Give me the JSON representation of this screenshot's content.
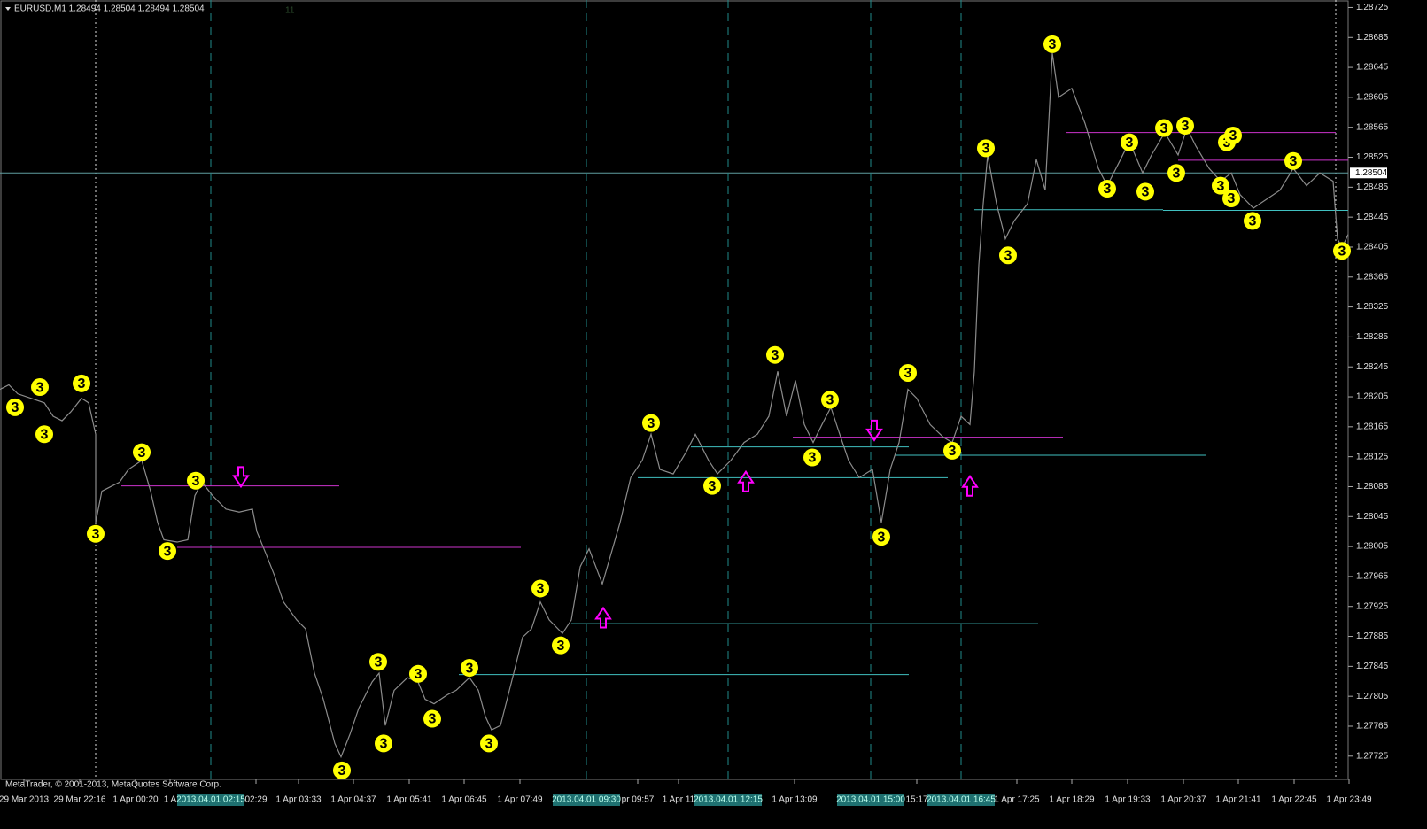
{
  "header": "EURUSD,M1  1.28494 1.28504 1.28494 1.28504",
  "copyright": "MetaTrader, © 2001-2013, MetaQuotes Software Corp.",
  "corner_mark": "11",
  "chart_data": {
    "type": "line",
    "xlim": [
      0,
      1522
    ],
    "ylim": [
      1.27694,
      1.28735
    ],
    "yticks": [
      1.28725,
      1.28685,
      1.28645,
      1.28605,
      1.28565,
      1.28525,
      1.28485,
      1.28445,
      1.28405,
      1.28365,
      1.28325,
      1.28285,
      1.28245,
      1.28205,
      1.28165,
      1.28125,
      1.28085,
      1.28045,
      1.28005,
      1.27965,
      1.27925,
      1.27885,
      1.27845,
      1.27805,
      1.27765,
      1.27725
    ],
    "xticks": [
      {
        "value": 27,
        "label": "29 Mar 2013"
      },
      {
        "value": 90,
        "label": "29 Mar 22:16"
      },
      {
        "value": 153,
        "label": "1 Apr 00:20"
      },
      {
        "value": 192,
        "label": "1 A"
      },
      {
        "value": 289,
        "label": "02:29"
      },
      {
        "value": 337,
        "label": "1 Apr 03:33"
      },
      {
        "value": 399,
        "label": "1 Apr 04:37"
      },
      {
        "value": 462,
        "label": "1 Apr 05:41"
      },
      {
        "value": 524,
        "label": "1 Apr 06:45"
      },
      {
        "value": 587,
        "label": "1 Apr 07:49"
      },
      {
        "value": 720,
        "label": "pr 09:57"
      },
      {
        "value": 766,
        "label": "1 Apr 11"
      },
      {
        "value": 897,
        "label": "1 Apr 13:09"
      },
      {
        "value": 1035,
        "label": "15:17"
      },
      {
        "value": 1148,
        "label": "1 Apr 17:25"
      },
      {
        "value": 1210,
        "label": "1 Apr 18:29"
      },
      {
        "value": 1273,
        "label": "1 Apr 19:33"
      },
      {
        "value": 1336,
        "label": "1 Apr 20:37"
      },
      {
        "value": 1398,
        "label": "1 Apr 21:41"
      },
      {
        "value": 1461,
        "label": "1 Apr 22:45"
      },
      {
        "value": 1523,
        "label": "1 Apr 23:49"
      }
    ],
    "series": [
      {
        "color": "#8c8c8c",
        "x": [
          0,
          10,
          20,
          35,
          50,
          60,
          70,
          80,
          92,
          100,
          108,
          108,
          115,
          125,
          135,
          145,
          160,
          170,
          178,
          185,
          200,
          212,
          220,
          228,
          240,
          255,
          270,
          285,
          290,
          300,
          310,
          320,
          335,
          345,
          355,
          365,
          378,
          385,
          395,
          405,
          420,
          428,
          435,
          445,
          460,
          472,
          480,
          490,
          505,
          515,
          530,
          540,
          548,
          555,
          565,
          580,
          590,
          600,
          610,
          620,
          635,
          645,
          655,
          665,
          680,
          690,
          700,
          712,
          725,
          735,
          745,
          760,
          775,
          785,
          800,
          810,
          825,
          840,
          855,
          868,
          878,
          888,
          898,
          908,
          918,
          928,
          938,
          948,
          958,
          970,
          985,
          995,
          1005,
          1015,
          1025,
          1035,
          1050,
          1065,
          1075,
          1085,
          1095,
          1100,
          1105,
          1110,
          1115,
          1125,
          1135,
          1145,
          1160,
          1170,
          1180,
          1188,
          1195,
          1210,
          1225,
          1240,
          1250,
          1265,
          1275,
          1290,
          1300,
          1315,
          1330,
          1340,
          1350,
          1365,
          1378,
          1390,
          1400,
          1415,
          1430,
          1445,
          1460,
          1475,
          1490,
          1505,
          1510,
          1515,
          1522
        ],
        "values": [
          1.28215,
          1.28221,
          1.28209,
          1.28203,
          1.28197,
          1.28179,
          1.28173,
          1.28185,
          1.28203,
          1.28197,
          1.28155,
          1.28037,
          1.28079,
          1.28085,
          1.28091,
          1.28108,
          1.2812,
          1.28079,
          1.28037,
          1.28014,
          1.28011,
          1.28014,
          1.28073,
          1.28091,
          1.28073,
          1.28055,
          1.28051,
          1.28055,
          1.28025,
          1.27996,
          1.27966,
          1.27931,
          1.27907,
          1.27895,
          1.27836,
          1.27801,
          1.27742,
          1.27724,
          1.27754,
          1.27789,
          1.27824,
          1.27836,
          1.27766,
          1.27813,
          1.2783,
          1.27824,
          1.27801,
          1.27795,
          1.27807,
          1.27813,
          1.2783,
          1.27813,
          1.27778,
          1.2776,
          1.27766,
          1.27836,
          1.27884,
          1.27895,
          1.27931,
          1.27907,
          1.27889,
          1.27907,
          1.27978,
          1.28002,
          1.27955,
          1.27996,
          1.28037,
          1.28097,
          1.2812,
          1.28155,
          1.28108,
          1.28102,
          1.28132,
          1.28155,
          1.2812,
          1.28102,
          1.2812,
          1.28144,
          1.28155,
          1.28179,
          1.28239,
          1.28179,
          1.28227,
          1.28168,
          1.28144,
          1.28168,
          1.28191,
          1.28155,
          1.2812,
          1.28097,
          1.28108,
          1.28037,
          1.28108,
          1.28144,
          1.28215,
          1.28203,
          1.28168,
          1.28151,
          1.28144,
          1.28179,
          1.28168,
          1.28239,
          1.28381,
          1.28463,
          1.28528,
          1.28463,
          1.28416,
          1.2844,
          1.28463,
          1.28522,
          1.28481,
          1.28664,
          1.28605,
          1.28617,
          1.2857,
          1.2851,
          1.28487,
          1.28522,
          1.28546,
          1.28504,
          1.28528,
          1.28558,
          1.28528,
          1.28564,
          1.2854,
          1.2851,
          1.28493,
          1.28504,
          1.28475,
          1.28457,
          1.28469,
          1.28481,
          1.2851,
          1.28487,
          1.28504,
          1.28493,
          1.28416,
          1.28404,
          1.28422
        ]
      }
    ],
    "current_price": 1.28504,
    "current_price_color": "#5f9ea0",
    "markers": {
      "label": "3",
      "color": "#ffff00",
      "x": [
        17,
        45,
        50,
        92,
        108,
        160,
        189,
        221,
        386,
        427,
        433,
        472,
        488,
        530,
        552,
        610,
        633,
        735,
        804,
        875,
        917,
        937,
        995,
        1025,
        1075,
        1113,
        1138,
        1188,
        1250,
        1275,
        1293,
        1314,
        1328,
        1338,
        1378,
        1385,
        1392,
        1390,
        1414,
        1460,
        1515
      ],
      "values": [
        1.28191,
        1.28218,
        1.28155,
        1.28223,
        1.28022,
        1.28131,
        1.27999,
        1.28093,
        1.27706,
        1.27851,
        1.27742,
        1.27835,
        1.27775,
        1.27843,
        1.27742,
        1.27949,
        1.27873,
        1.2817,
        1.28086,
        1.28261,
        1.28124,
        1.28201,
        1.28018,
        1.28237,
        1.28133,
        1.28537,
        1.28394,
        1.28676,
        1.28483,
        1.28545,
        1.28479,
        1.28564,
        1.28504,
        1.28567,
        1.28487,
        1.28545,
        1.28554,
        1.2847,
        1.2844,
        1.2852,
        1.284
      ]
    },
    "levels": [
      {
        "color": "#cc33cc",
        "x": [
          137,
          383
        ],
        "value": 1.28086
      },
      {
        "color": "#cc33cc",
        "x": [
          200,
          588
        ],
        "value": 1.28004
      },
      {
        "color": "#cc33cc",
        "x": [
          1203,
          1508
        ],
        "value": 1.28558
      },
      {
        "color": "#cc33cc",
        "x": [
          895,
          1200
        ],
        "value": 1.28151
      },
      {
        "color": "#cc33cc",
        "x": [
          1330,
          1522
        ],
        "value": 1.28521
      },
      {
        "color": "#40c0c0",
        "x": [
          518,
          1026
        ],
        "value": 1.27834
      },
      {
        "color": "#40c0c0",
        "x": [
          645,
          1172
        ],
        "value": 1.27902
      },
      {
        "color": "#40c0c0",
        "x": [
          720,
          1070
        ],
        "value": 1.28097
      },
      {
        "color": "#40c0c0",
        "x": [
          780,
          1026
        ],
        "value": 1.28138
      },
      {
        "color": "#40c0c0",
        "x": [
          1010,
          1362
        ],
        "value": 1.28127
      },
      {
        "color": "#40c0c0",
        "x": [
          1100,
          1313
        ],
        "value": 1.28455
      },
      {
        "color": "#40c0c0",
        "x": [
          1313,
          1522
        ],
        "value": 1.28454
      }
    ],
    "arrows": [
      {
        "direction": "down",
        "color": "#ff00ff",
        "x": 272,
        "value": 1.28097
      },
      {
        "direction": "down",
        "color": "#ff00ff",
        "x": 987,
        "value": 1.28159
      },
      {
        "direction": "up",
        "color": "#ff00ff",
        "x": 681,
        "value": 1.27911
      },
      {
        "direction": "up",
        "color": "#ff00ff",
        "x": 842,
        "value": 1.28093
      },
      {
        "direction": "up",
        "color": "#ff00ff",
        "x": 1095,
        "value": 1.28087
      }
    ],
    "vlines": [
      {
        "x": 238,
        "label": "2013.04.01 02:15"
      },
      {
        "x": 662,
        "label": "2013.04.01 09:30"
      },
      {
        "x": 822,
        "label": "2013.04.01 12:15"
      },
      {
        "x": 983,
        "label": "2013.04.01 15:00"
      },
      {
        "x": 1085,
        "label": "2013.04.01 16:45"
      }
    ],
    "separators": [
      108,
      1508
    ]
  }
}
